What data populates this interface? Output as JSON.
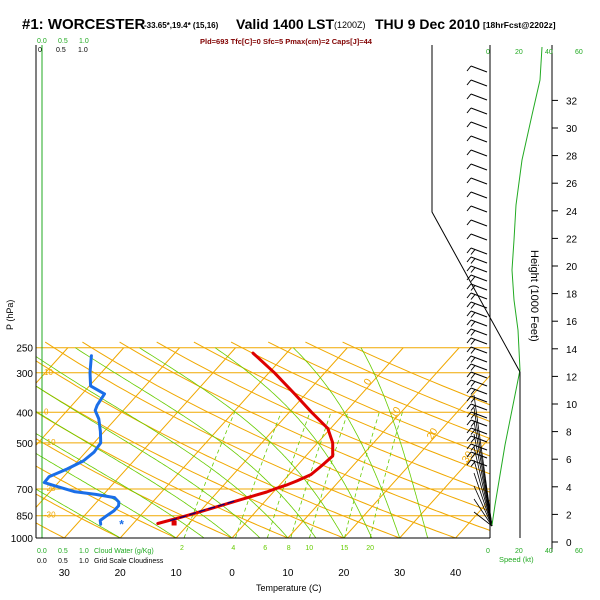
{
  "header": {
    "title": "#1: WORCESTER",
    "location": "-33.65*,19.4* (15,16)",
    "valid": "Valid 1400 LST",
    "utc": "(1200Z)",
    "date": "THU 9 Dec 2010",
    "forecast": "[18hrFcst@2202z]"
  },
  "params_line": "Pld=693 Tfc[C]=0 Sfc=5 Pmax(cm)=2 Caps[J]=44",
  "colors": {
    "isotherm": "#f0a800",
    "dry_adiabat": "#f0a800",
    "moist_adiabat": "#66cc00",
    "mixing_ratio": "#66cc00",
    "temperature": "#dd0000",
    "dewpoint": "#1a6ee8",
    "parcel": "#000080",
    "axis": "#000000",
    "green_axis": "#22aa22"
  },
  "chart_data": {
    "type": "line",
    "title": "#1: WORCESTER",
    "xlabel": "Temperature (C)",
    "ylabel": "P (hPa)",
    "right_label": "Height (1000 Feet)",
    "x_ticks": [
      -30,
      -20,
      -10,
      0,
      10,
      20,
      30,
      40
    ],
    "x_tick_labels": [
      "30",
      "20",
      "10",
      "0",
      "10",
      "20",
      "30",
      "40"
    ],
    "pressure_ticks": [
      250,
      300,
      400,
      500,
      700,
      850,
      1000
    ],
    "height_ticks": [
      0,
      2,
      4,
      6,
      8,
      10,
      12,
      14,
      16,
      18,
      20,
      22,
      24,
      26,
      28,
      30,
      32
    ],
    "skew": true,
    "ylim_hpa": [
      1000,
      250
    ],
    "isotherm_labels": [
      "0",
      "10",
      "20",
      "30"
    ],
    "dry_adiabat_labels": [
      "30",
      "20",
      "10",
      "0",
      "-10",
      "-20",
      "-30"
    ],
    "mixing_ratio_labels": [
      "2",
      "4",
      "6",
      "8",
      "10",
      "15",
      "20"
    ],
    "series": [
      {
        "key": "temperature",
        "points": [
          [
            -15.6,
            900
          ],
          [
            -12.5,
            860
          ],
          [
            -9.5,
            820
          ],
          [
            -6.5,
            780
          ],
          [
            -3.7,
            745
          ],
          [
            -1.2,
            715
          ],
          [
            -0.3,
            700
          ],
          [
            1.2,
            680
          ],
          [
            2.4,
            660
          ],
          [
            3.9,
            630
          ],
          [
            4.4,
            590
          ],
          [
            4.8,
            550
          ],
          [
            2.7,
            500
          ],
          [
            -0.5,
            450
          ],
          [
            -6.0,
            400
          ],
          [
            -12.0,
            350
          ],
          [
            -19.0,
            300
          ],
          [
            -26.0,
            260
          ]
        ]
      },
      {
        "key": "dewpoint",
        "points": [
          [
            -25.7,
            905
          ],
          [
            -26.4,
            880
          ],
          [
            -26.0,
            850
          ],
          [
            -25.5,
            820
          ],
          [
            -25.5,
            790
          ],
          [
            -26.0,
            770
          ],
          [
            -27.5,
            745
          ],
          [
            -31.4,
            728
          ],
          [
            -35.7,
            713
          ],
          [
            -39.9,
            685
          ],
          [
            -42.5,
            668
          ],
          [
            -42.6,
            640
          ],
          [
            -40.6,
            605
          ],
          [
            -39.0,
            570
          ],
          [
            -38.5,
            535
          ],
          [
            -38.8,
            500
          ],
          [
            -40.7,
            460
          ],
          [
            -43.0,
            420
          ],
          [
            -45.0,
            395
          ],
          [
            -45.5,
            380
          ],
          [
            -46.0,
            350
          ],
          [
            -49.8,
            330
          ],
          [
            -52.0,
            300
          ],
          [
            -54.5,
            265
          ]
        ]
      },
      {
        "key": "parcel",
        "points": [
          [
            -13.8,
            880
          ],
          [
            -11.7,
            850
          ],
          [
            -9.8,
            820
          ],
          [
            -7.5,
            790
          ],
          [
            -5.2,
            760
          ]
        ]
      }
    ],
    "surface_temperature_marker": -12.6,
    "surface_dewpoint_marker": -21.8
  },
  "speed_axis": {
    "label": "Speed (kt)",
    "ticks": [
      "0",
      "20",
      "40",
      "60"
    ]
  },
  "bl_axis": {
    "top_labels": [
      "0.0",
      "0.5",
      "1.0"
    ],
    "top_labels2": [
      "0",
      "0.5",
      "1.0"
    ],
    "bottom_labels_green": [
      "0.0",
      "0.5",
      "1.0"
    ],
    "bottom_text_green": "Cloud Water (g/Kg)",
    "bottom_labels_black": [
      "0.0",
      "0.5",
      "1.0"
    ],
    "bottom_text_black": "Grid Scale Cloudiness"
  }
}
